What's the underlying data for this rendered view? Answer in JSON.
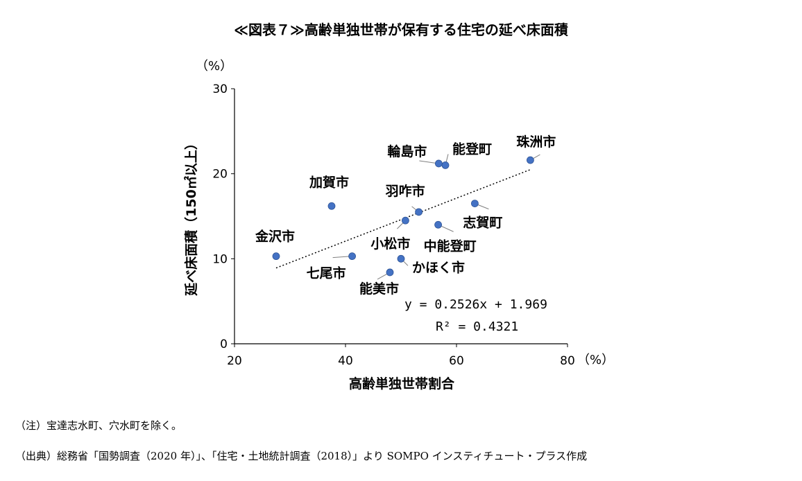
{
  "chart_data": {
    "type": "scatter",
    "title": "≪図表７≫高齢単独世帯が保有する住宅の延べ床面積",
    "xlabel": "高齢単独世帯割合",
    "ylabel": "延べ床面積（150㎡以上）",
    "x_unit": "（%）",
    "y_unit": "（%）",
    "xlim": [
      20,
      80
    ],
    "ylim": [
      0,
      30
    ],
    "x_ticks": [
      "20",
      "40",
      "60",
      "80"
    ],
    "y_ticks": [
      "0",
      "10",
      "20",
      "30"
    ],
    "point_color": "#4472C4",
    "points": [
      {
        "label": "金沢市",
        "x": 27.5,
        "y": 10.3
      },
      {
        "label": "加賀市",
        "x": 37.5,
        "y": 16.2
      },
      {
        "label": "七尾市",
        "x": 41.2,
        "y": 10.3
      },
      {
        "label": "能美市",
        "x": 48.0,
        "y": 8.4
      },
      {
        "label": "かほく市",
        "x": 50.0,
        "y": 10.0
      },
      {
        "label": "小松市",
        "x": 50.8,
        "y": 14.5
      },
      {
        "label": "羽咋市",
        "x": 53.2,
        "y": 15.5
      },
      {
        "label": "中能登町",
        "x": 56.7,
        "y": 14.0
      },
      {
        "label": "輪島市",
        "x": 56.8,
        "y": 21.2
      },
      {
        "label": "能登町",
        "x": 58.0,
        "y": 21.0
      },
      {
        "label": "志賀町",
        "x": 63.3,
        "y": 16.5
      },
      {
        "label": "珠洲市",
        "x": 73.3,
        "y": 21.6
      }
    ],
    "trendline": {
      "slope": 0.2526,
      "intercept": 1.969,
      "x_range": [
        27.5,
        73.3
      ]
    },
    "equation": "y = 0.2526x + 1.969",
    "r2_text": "R² = 0.4321"
  },
  "notes": {
    "note": "（注）宝達志水町、穴水町を除く。",
    "source": "（出典）総務省「国勢調査（2020 年）」、「住宅・土地統計調査（2018）」より SOMPO インスティチュート・プラス作成"
  }
}
